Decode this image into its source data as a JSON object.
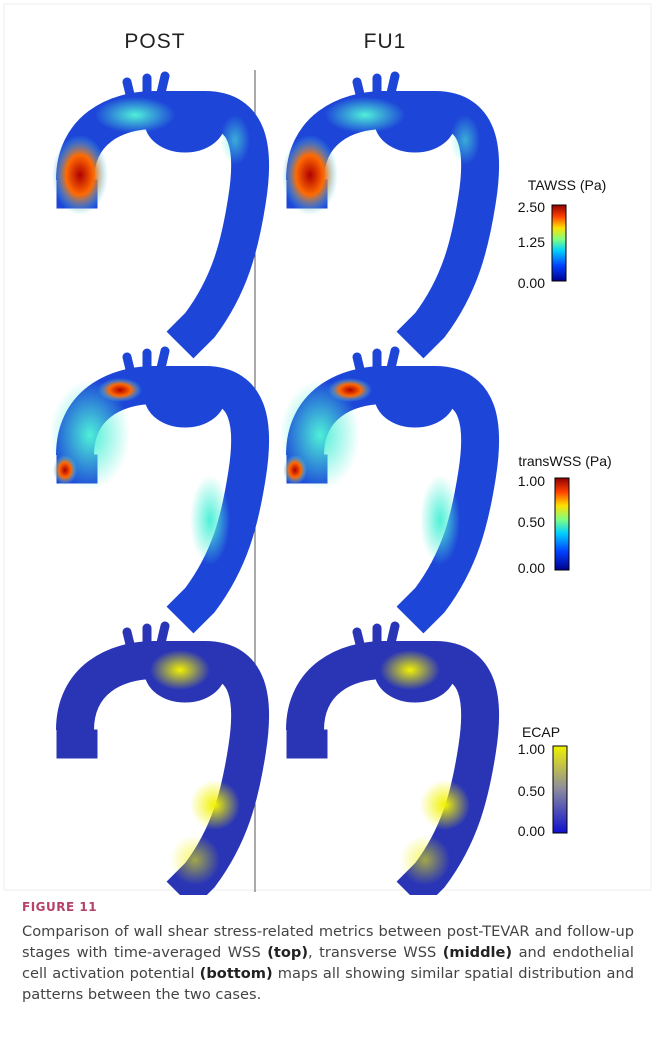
{
  "columns": [
    "POST",
    "FU1"
  ],
  "colorbars": [
    {
      "title": "TAWSS (Pa)",
      "ticks": [
        "2.50",
        "1.25",
        "0.00"
      ]
    },
    {
      "title": "transWSS (Pa)",
      "ticks": [
        "1.00",
        "0.50",
        "0.00"
      ]
    },
    {
      "title": "ECAP",
      "ticks": [
        "1.00",
        "0.50",
        "0.00"
      ]
    }
  ],
  "figure_label": "FIGURE 11",
  "caption": [
    "Comparison of wall shear stress-related metrics between post-TEVAR and follow-up stages with time-averaged WSS ",
    "(top)",
    ", transverse WSS ",
    "(middle)",
    " and endothelial cell activation potential ",
    "(bottom)",
    " maps all showing similar spatial distribution and patterns between the two cases."
  ]
}
